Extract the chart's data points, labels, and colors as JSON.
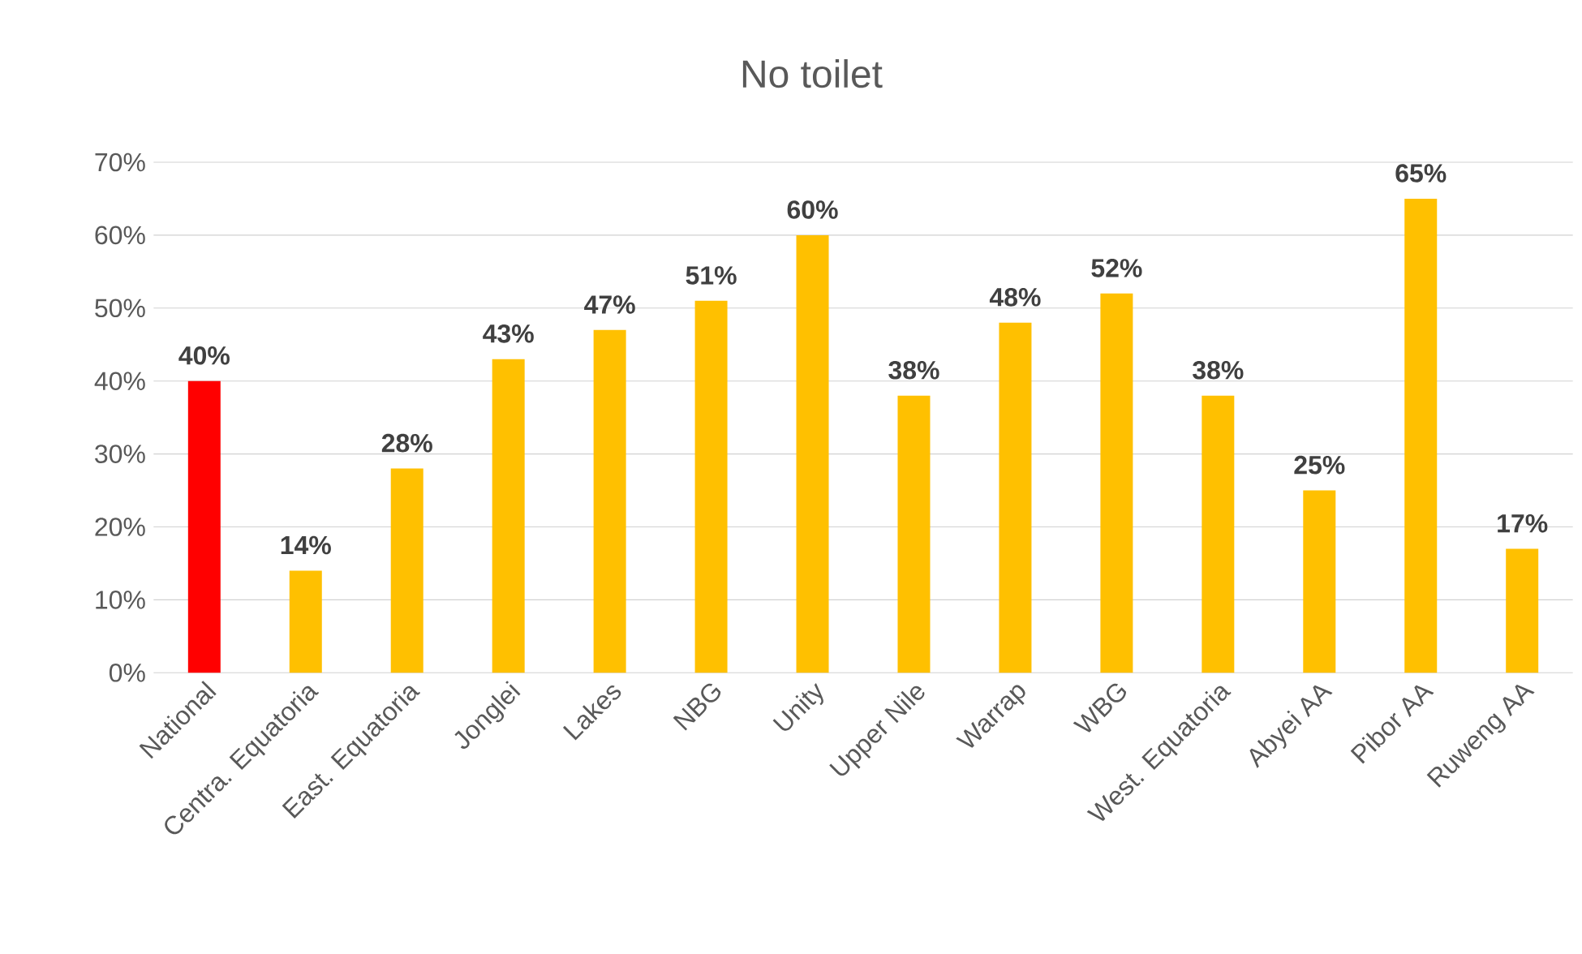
{
  "chart_data": {
    "type": "bar",
    "title": "No toilet",
    "categories": [
      "National",
      "Centra. Equatoria",
      "East. Equatoria",
      "Jonglei",
      "Lakes",
      "NBG",
      "Unity",
      "Upper Nile",
      "Warrap",
      "WBG",
      "West. Equatoria",
      "Abyei AA",
      "Pibor AA",
      "Ruweng AA"
    ],
    "values": [
      40,
      14,
      28,
      43,
      47,
      51,
      60,
      38,
      48,
      52,
      38,
      25,
      65,
      17
    ],
    "value_labels": [
      "40%",
      "14%",
      "28%",
      "43%",
      "47%",
      "51%",
      "60%",
      "38%",
      "48%",
      "52%",
      "38%",
      "25%",
      "65%",
      "17%"
    ],
    "colors": [
      "#ff0000",
      "#ffc000",
      "#ffc000",
      "#ffc000",
      "#ffc000",
      "#ffc000",
      "#ffc000",
      "#ffc000",
      "#ffc000",
      "#ffc000",
      "#ffc000",
      "#ffc000",
      "#ffc000",
      "#ffc000"
    ],
    "ylim": [
      0,
      70
    ],
    "yticks": [
      {
        "value": 0,
        "label": "0%"
      },
      {
        "value": 10,
        "label": "10%"
      },
      {
        "value": 20,
        "label": "20%"
      },
      {
        "value": 30,
        "label": "30%"
      },
      {
        "value": 40,
        "label": "40%"
      },
      {
        "value": 50,
        "label": "50%"
      },
      {
        "value": 60,
        "label": "60%"
      },
      {
        "value": 70,
        "label": "70%"
      }
    ],
    "grid": "y"
  }
}
